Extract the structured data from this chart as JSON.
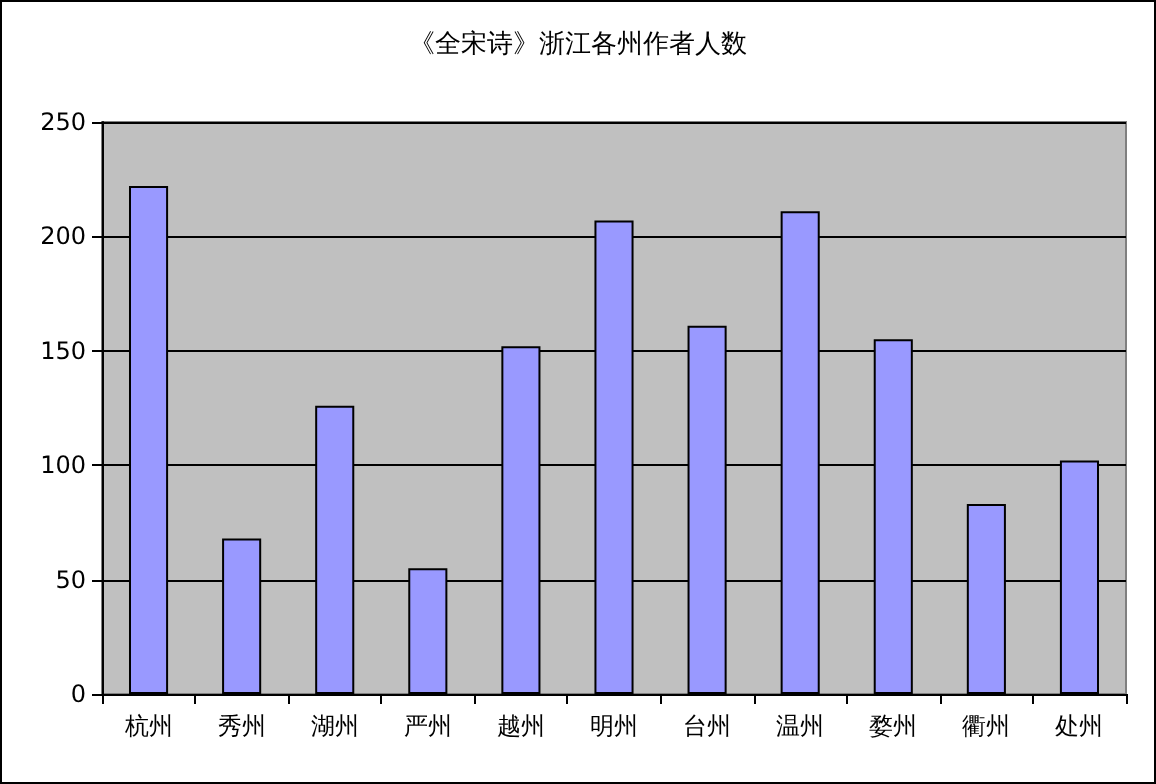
{
  "chart_data": {
    "type": "bar",
    "title": "《全宋诗》浙江各州作者人数",
    "categories": [
      "杭州",
      "秀州",
      "湖州",
      "严州",
      "越州",
      "明州",
      "台州",
      "温州",
      "婺州",
      "衢州",
      "处州"
    ],
    "values": [
      222,
      68,
      126,
      55,
      152,
      207,
      161,
      211,
      155,
      83,
      102
    ],
    "color": "#9999ff",
    "ylim": [
      0,
      250
    ],
    "yticks": [
      0,
      50,
      100,
      150,
      200,
      250
    ],
    "grid": "y"
  }
}
